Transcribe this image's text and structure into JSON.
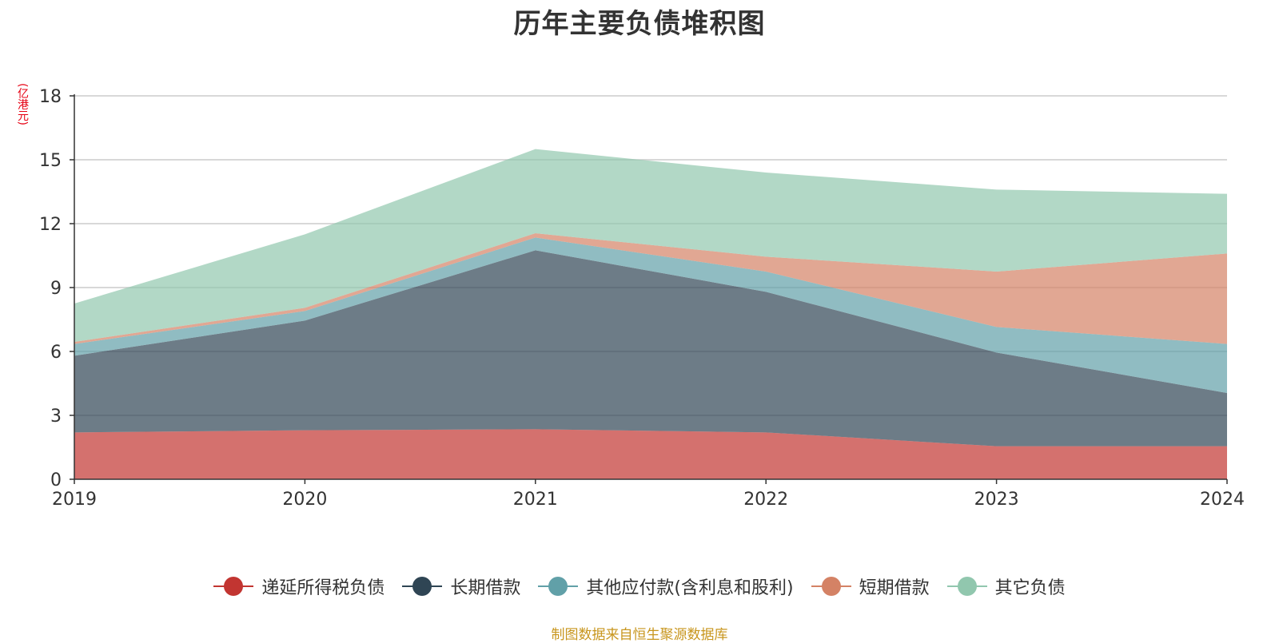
{
  "title": "历年主要负债堆积图",
  "unit": "(亿港元)",
  "source": "制图数据来自恒生聚源数据库",
  "chart_data": {
    "type": "area",
    "stacked": true,
    "title": "历年主要负债堆积图",
    "ylabel": "(亿港元)",
    "x": [
      "2019",
      "2020",
      "2021",
      "2022",
      "2023",
      "2024"
    ],
    "ylim": [
      0,
      18
    ],
    "yticks": [
      0,
      3,
      6,
      9,
      12,
      15,
      18
    ],
    "grid": true,
    "legend_position": "bottom",
    "series": [
      {
        "name": "递延所得税负债",
        "color": "#c23531",
        "values": [
          2.2,
          2.3,
          2.35,
          2.2,
          1.55,
          1.55
        ]
      },
      {
        "name": "长期借款",
        "color": "#2f4554",
        "values": [
          3.6,
          5.15,
          8.4,
          6.6,
          4.4,
          2.5
        ]
      },
      {
        "name": "其他应付款(含利息和股利)",
        "color": "#61a0a8",
        "values": [
          0.55,
          0.45,
          0.6,
          0.95,
          1.2,
          2.3
        ]
      },
      {
        "name": "短期借款",
        "color": "#d48265",
        "values": [
          0.1,
          0.15,
          0.2,
          0.7,
          2.6,
          4.25
        ]
      },
      {
        "name": "其它负债",
        "color": "#91c7ae",
        "values": [
          1.8,
          3.45,
          3.95,
          3.95,
          3.85,
          2.8
        ]
      }
    ]
  }
}
